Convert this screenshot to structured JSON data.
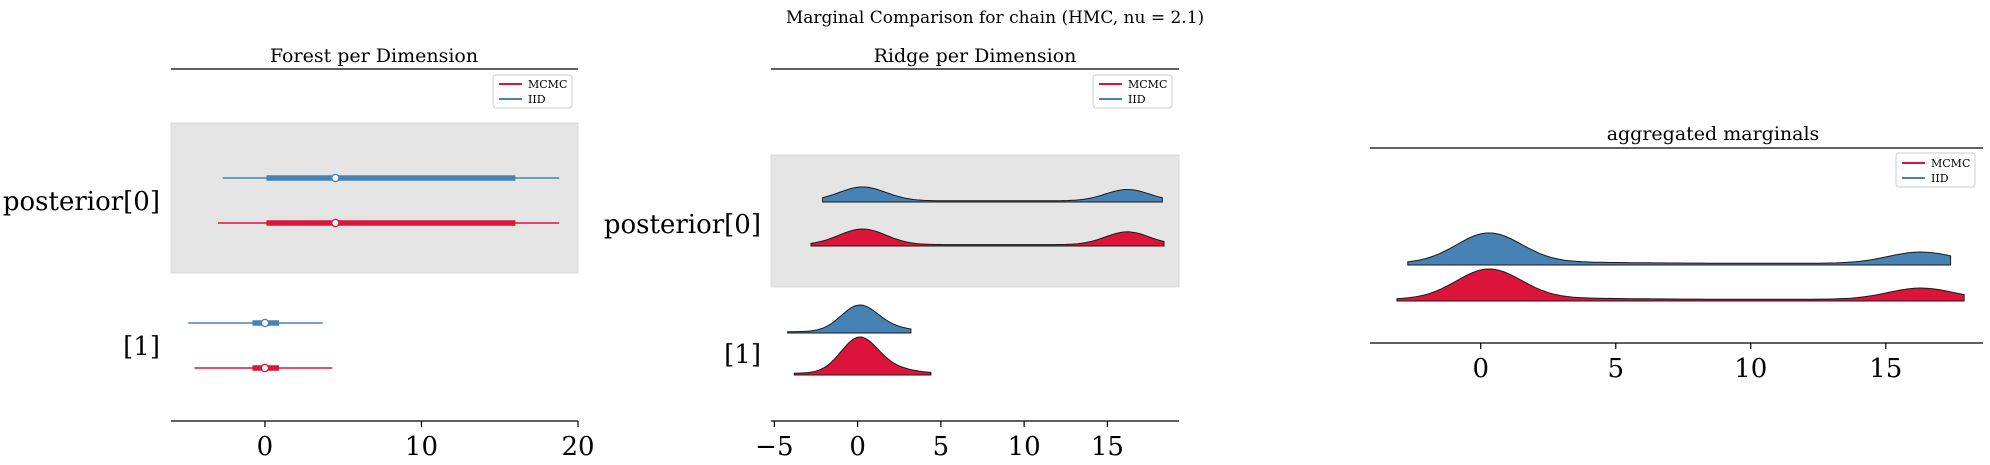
{
  "figure": {
    "suptitle": "Marginal Comparison for chain (HMC, nu = 2.1)"
  },
  "colors": {
    "mcmc": "#dc143c",
    "iid": "#4682b4",
    "highlight": "#e5e5e5"
  },
  "chart_data": [
    {
      "type": "forest",
      "title": "Forest per Dimension",
      "y_labels": [
        "posterior[0]",
        "[1]"
      ],
      "xlim": [
        -6,
        20
      ],
      "xticks": [
        0,
        10,
        20
      ],
      "legend": {
        "placement": "top-right",
        "entries": [
          "MCMC",
          "IID"
        ]
      },
      "series": [
        {
          "name": "MCMC",
          "rows": [
            {
              "label": "posterior[0]",
              "hdi": [
                -3.0,
                18.8
              ],
              "iqr": [
                0.1,
                16.0
              ],
              "median": 4.5
            },
            {
              "label": "[1]",
              "hdi": [
                -4.5,
                4.3
              ],
              "iqr": [
                -0.8,
                0.9
              ],
              "median": 0.0
            }
          ]
        },
        {
          "name": "IID",
          "rows": [
            {
              "label": "posterior[0]",
              "hdi": [
                -2.7,
                18.8
              ],
              "iqr": [
                0.1,
                16.0
              ],
              "median": 4.5
            },
            {
              "label": "[1]",
              "hdi": [
                -4.9,
                3.7
              ],
              "iqr": [
                -0.8,
                0.9
              ],
              "median": 0.0
            }
          ]
        }
      ]
    },
    {
      "type": "ridge",
      "title": "Ridge per Dimension",
      "y_labels": [
        "posterior[0]",
        "[1]"
      ],
      "xlim": [
        -5.2,
        19.3
      ],
      "xticks": [
        -5,
        0,
        5,
        10,
        15
      ],
      "legend": {
        "placement": "top-right",
        "entries": [
          "MCMC",
          "IID"
        ]
      },
      "series": [
        {
          "name": "MCMC",
          "rows": [
            {
              "label": "posterior[0]",
              "range": [
                -2.8,
                18.4
              ]
            },
            {
              "label": "[1]",
              "range": [
                -3.8,
                4.4
              ]
            }
          ]
        },
        {
          "name": "IID",
          "rows": [
            {
              "label": "posterior[0]",
              "range": [
                -2.1,
                18.3
              ]
            },
            {
              "label": "[1]",
              "range": [
                -4.2,
                3.2
              ]
            }
          ]
        }
      ]
    },
    {
      "type": "ridge",
      "title": "aggregated marginals",
      "xlim": [
        -4.1,
        18.6
      ],
      "xticks": [
        0,
        5,
        10,
        15
      ],
      "legend": {
        "placement": "top-right",
        "entries": [
          "MCMC",
          "IID"
        ]
      },
      "series": [
        {
          "name": "MCMC",
          "range": [
            -3.1,
            17.9
          ]
        },
        {
          "name": "IID",
          "range": [
            -2.7,
            17.4
          ]
        }
      ]
    }
  ]
}
